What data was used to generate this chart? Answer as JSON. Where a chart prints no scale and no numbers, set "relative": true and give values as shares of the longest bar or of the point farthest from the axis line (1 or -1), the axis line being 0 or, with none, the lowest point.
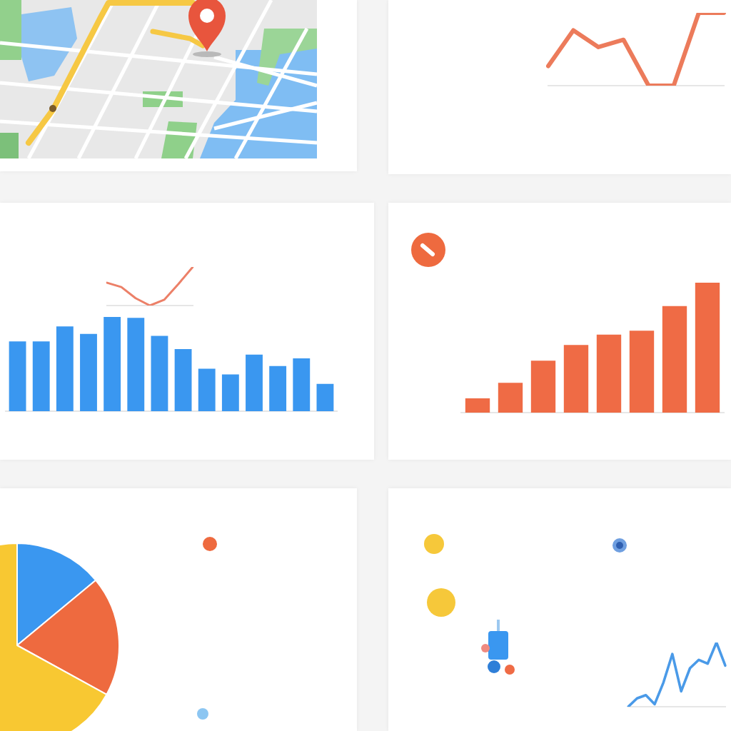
{
  "chart_data": [
    {
      "type": "line",
      "relative": true,
      "categories": [
        null,
        null,
        null,
        null,
        null,
        null,
        null,
        null
      ],
      "values": [
        0.27,
        0.76,
        0.53,
        0.63,
        0,
        0,
        1,
        1
      ],
      "color": "#ec7b5b"
    },
    {
      "type": "bar",
      "relative": true,
      "categories": [
        null,
        null,
        null,
        null,
        null,
        null,
        null,
        null,
        null,
        null,
        null,
        null,
        null,
        null
      ],
      "values": [
        0.74,
        0.74,
        0.9,
        0.82,
        1,
        0.99,
        0.8,
        0.66,
        0.45,
        0.39,
        0.6,
        0.48,
        0.56,
        0.29
      ],
      "color": "#3a97f0"
    },
    {
      "type": "line",
      "relative": true,
      "categories": [
        null,
        null,
        null,
        null,
        null,
        null,
        null
      ],
      "values": [
        0.59,
        0.48,
        0.19,
        0,
        0.15,
        0.56,
        1
      ],
      "color": "#ec8068"
    },
    {
      "type": "bar",
      "relative": true,
      "categories": [
        null,
        null,
        null,
        null,
        null,
        null,
        null,
        null
      ],
      "values": [
        0.11,
        0.23,
        0.4,
        0.52,
        0.6,
        0.63,
        0.82,
        1
      ],
      "color": "#ef6b45"
    },
    {
      "type": "pie",
      "categories": [
        null,
        null,
        null
      ],
      "values": [
        14,
        19,
        67
      ],
      "colors": [
        "#3a97f0",
        "#ee6a3f",
        "#f8c832"
      ]
    },
    {
      "type": "line",
      "relative": true,
      "categories": [
        null,
        null,
        null,
        null,
        null,
        null,
        null,
        null,
        null,
        null,
        null,
        null
      ],
      "values": [
        0,
        0.13,
        0.18,
        0.04,
        0.38,
        0.82,
        0.24,
        0.6,
        0.73,
        0.67,
        1,
        0.64
      ],
      "color": "#4a9ae8"
    }
  ]
}
